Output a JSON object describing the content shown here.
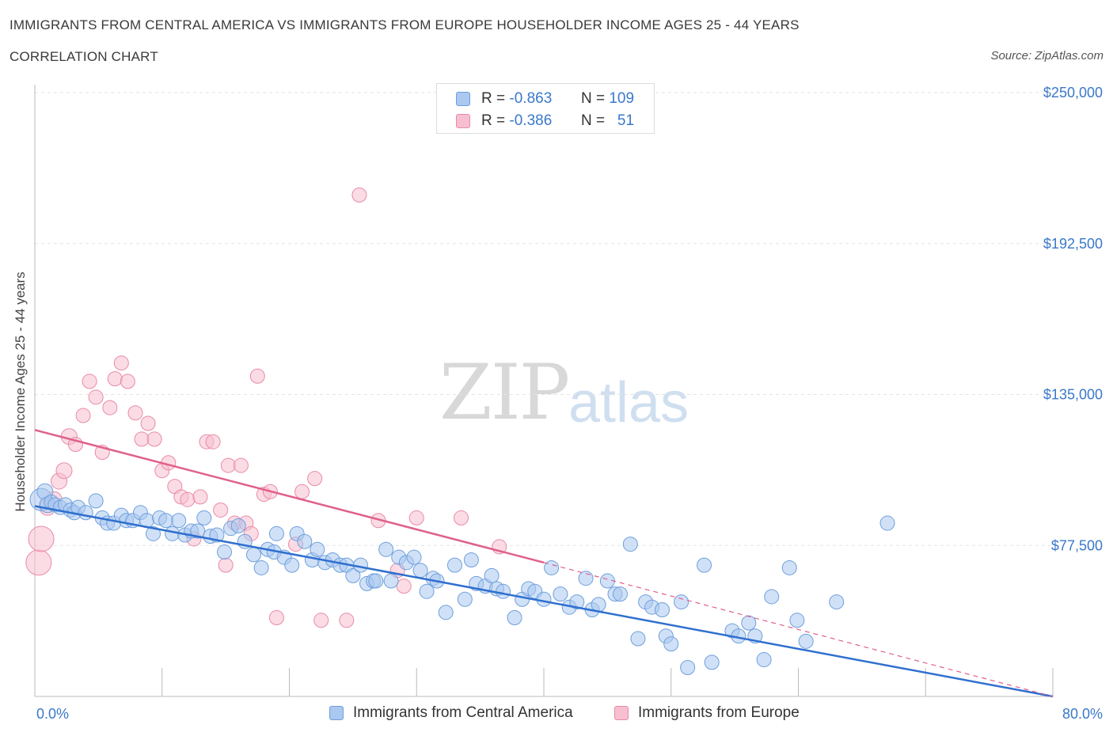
{
  "title": "IMMIGRANTS FROM CENTRAL AMERICA VS IMMIGRANTS FROM EUROPE HOUSEHOLDER INCOME AGES 25 - 44 YEARS",
  "subtitle": "CORRELATION CHART",
  "source": "Source: ZipAtlas.com",
  "watermark": {
    "zip": "ZIP",
    "atlas": "atlas"
  },
  "legend": {
    "rows": [
      {
        "r_label": "R =",
        "r_value": "-0.863",
        "n_label": "N =",
        "n_value": "109",
        "color": "#aac8f0"
      },
      {
        "r_label": "R =",
        "r_value": "-0.386",
        "n_label": "N =",
        "n_value": "51",
        "color": "#f7bfd0"
      }
    ]
  },
  "bottom_legend": {
    "series1": "Immigrants from Central America",
    "series2": "Immigrants from Europe"
  },
  "colors": {
    "blue_fill": "#aac8f0",
    "blue_stroke": "#6f9fdc",
    "blue_line": "#2f6fcf",
    "pink_fill": "#f7bfd0",
    "pink_stroke": "#e98aa8",
    "pink_line": "#e0608a",
    "tick_label": "#3a78c9",
    "grid": "#e3e3e3"
  },
  "chart_data": {
    "type": "scatter",
    "title": "IMMIGRANTS FROM CENTRAL AMERICA VS IMMIGRANTS FROM EUROPE HOUSEHOLDER INCOME AGES 25 - 44 YEARS",
    "xlabel": "",
    "ylabel": "Householder Income Ages 25 - 44 years",
    "xlim": [
      0,
      80
    ],
    "ylim": [
      20000,
      250000
    ],
    "x_tick_labels": [
      "0.0%",
      "80.0%"
    ],
    "y_ticks": [
      77500,
      135000,
      192500,
      250000
    ],
    "y_tick_labels": [
      "$77,500",
      "$135,000",
      "$192,500",
      "$250,000"
    ],
    "grid": "horizontal dashed",
    "legend_position": "top-center",
    "series": [
      {
        "name": "Immigrants from Central America",
        "color": "#aac8f0",
        "trend": {
          "x": [
            0,
            80
          ],
          "y": [
            92500,
            20000
          ]
        },
        "points": [
          [
            0.5,
            95000,
            14
          ],
          [
            0.8,
            98000,
            10
          ],
          [
            1.0,
            93000,
            10
          ],
          [
            1.3,
            94000,
            9
          ],
          [
            1.6,
            93000,
            9
          ],
          [
            2.0,
            92000,
            9
          ],
          [
            2.4,
            93000,
            9
          ],
          [
            2.8,
            91000,
            9
          ],
          [
            3.1,
            90000,
            9
          ],
          [
            3.4,
            92000,
            9
          ],
          [
            4.0,
            90000,
            9
          ],
          [
            4.8,
            94500,
            9
          ],
          [
            5.3,
            88000,
            9
          ],
          [
            5.7,
            86000,
            9
          ],
          [
            6.2,
            86000,
            9
          ],
          [
            6.8,
            89000,
            9
          ],
          [
            7.2,
            87000,
            9
          ],
          [
            7.7,
            87000,
            9
          ],
          [
            8.3,
            90000,
            9
          ],
          [
            8.8,
            87000,
            9
          ],
          [
            9.3,
            82000,
            9
          ],
          [
            9.8,
            88000,
            9
          ],
          [
            10.3,
            87000,
            9
          ],
          [
            10.8,
            82000,
            9
          ],
          [
            11.3,
            87000,
            9
          ],
          [
            11.8,
            81500,
            9
          ],
          [
            12.3,
            83000,
            9
          ],
          [
            12.8,
            83000,
            9
          ],
          [
            13.3,
            88000,
            9
          ],
          [
            13.8,
            81000,
            9
          ],
          [
            14.3,
            81500,
            9
          ],
          [
            14.9,
            75000,
            9
          ],
          [
            15.4,
            84000,
            9
          ],
          [
            16.0,
            85000,
            9
          ],
          [
            16.5,
            79000,
            9
          ],
          [
            17.2,
            74000,
            9
          ],
          [
            17.8,
            69000,
            9
          ],
          [
            18.3,
            76000,
            9
          ],
          [
            18.8,
            75000,
            9
          ],
          [
            19.0,
            82000,
            9
          ],
          [
            19.6,
            73000,
            9
          ],
          [
            20.2,
            70000,
            9
          ],
          [
            20.6,
            82000,
            9
          ],
          [
            21.2,
            79000,
            9
          ],
          [
            21.8,
            72000,
            9
          ],
          [
            22.2,
            76000,
            9
          ],
          [
            22.8,
            71000,
            9
          ],
          [
            23.4,
            72000,
            9
          ],
          [
            24.0,
            70000,
            9
          ],
          [
            24.5,
            70000,
            9
          ],
          [
            25.0,
            66000,
            9
          ],
          [
            25.6,
            70000,
            9
          ],
          [
            26.1,
            63000,
            9
          ],
          [
            26.6,
            64000,
            9
          ],
          [
            26.8,
            64000,
            9
          ],
          [
            27.6,
            76000,
            9
          ],
          [
            28.0,
            64000,
            9
          ],
          [
            28.6,
            73000,
            9
          ],
          [
            29.2,
            71000,
            9
          ],
          [
            29.8,
            73000,
            9
          ],
          [
            30.3,
            68000,
            9
          ],
          [
            30.8,
            60000,
            9
          ],
          [
            31.3,
            65000,
            9
          ],
          [
            31.6,
            64000,
            9
          ],
          [
            32.3,
            52000,
            9
          ],
          [
            33.0,
            70000,
            9
          ],
          [
            33.8,
            57000,
            9
          ],
          [
            34.3,
            72000,
            9
          ],
          [
            34.7,
            63000,
            9
          ],
          [
            35.4,
            62000,
            9
          ],
          [
            35.9,
            66000,
            9
          ],
          [
            36.3,
            61000,
            9
          ],
          [
            36.8,
            60000,
            9
          ],
          [
            37.7,
            50000,
            9
          ],
          [
            38.3,
            57000,
            9
          ],
          [
            38.8,
            61000,
            9
          ],
          [
            39.3,
            60000,
            9
          ],
          [
            40.0,
            57000,
            9
          ],
          [
            40.6,
            69000,
            9
          ],
          [
            41.3,
            59000,
            9
          ],
          [
            42.0,
            54000,
            9
          ],
          [
            42.6,
            56000,
            9
          ],
          [
            43.3,
            65000,
            9
          ],
          [
            43.8,
            53000,
            9
          ],
          [
            44.3,
            55000,
            9
          ],
          [
            45.0,
            64000,
            9
          ],
          [
            45.6,
            59000,
            9
          ],
          [
            46.0,
            59000,
            9
          ],
          [
            46.8,
            78000,
            9
          ],
          [
            47.4,
            42000,
            9
          ],
          [
            48.0,
            56000,
            9
          ],
          [
            48.5,
            54000,
            9
          ],
          [
            49.3,
            53000,
            9
          ],
          [
            49.6,
            43000,
            9
          ],
          [
            50.0,
            40000,
            9
          ],
          [
            50.8,
            56000,
            9
          ],
          [
            51.3,
            31000,
            9
          ],
          [
            52.6,
            70000,
            9
          ],
          [
            53.2,
            33000,
            9
          ],
          [
            54.8,
            45000,
            9
          ],
          [
            55.3,
            43000,
            9
          ],
          [
            56.1,
            48000,
            9
          ],
          [
            56.6,
            43000,
            9
          ],
          [
            57.3,
            34000,
            9
          ],
          [
            57.9,
            58000,
            9
          ],
          [
            59.3,
            69000,
            9
          ],
          [
            59.9,
            49000,
            9
          ],
          [
            60.6,
            41000,
            9
          ],
          [
            63.0,
            56000,
            9
          ],
          [
            67.0,
            86000,
            9
          ]
        ]
      },
      {
        "name": "Immigrants from Europe",
        "color": "#f7bfd0",
        "trend": {
          "x": [
            0,
            40
          ],
          "y": [
            121500,
            71000
          ]
        },
        "trend_dashed": {
          "x": [
            40,
            80
          ],
          "y": [
            71000,
            20000
          ]
        },
        "points": [
          [
            0.3,
            71000,
            16
          ],
          [
            0.5,
            80000,
            16
          ],
          [
            1.0,
            92000,
            10
          ],
          [
            1.5,
            95000,
            10
          ],
          [
            1.9,
            102000,
            10
          ],
          [
            2.3,
            106000,
            10
          ],
          [
            2.7,
            119000,
            10
          ],
          [
            3.2,
            116000,
            9
          ],
          [
            3.8,
            127000,
            9
          ],
          [
            4.3,
            140000,
            9
          ],
          [
            4.8,
            134000,
            9
          ],
          [
            5.3,
            113000,
            9
          ],
          [
            5.9,
            130000,
            9
          ],
          [
            6.3,
            141000,
            9
          ],
          [
            6.8,
            147000,
            9
          ],
          [
            7.3,
            140000,
            9
          ],
          [
            7.9,
            128000,
            9
          ],
          [
            8.4,
            118000,
            9
          ],
          [
            8.9,
            124000,
            9
          ],
          [
            9.4,
            118000,
            9
          ],
          [
            10.0,
            106000,
            9
          ],
          [
            10.5,
            109000,
            9
          ],
          [
            11.0,
            100000,
            9
          ],
          [
            11.5,
            96000,
            9
          ],
          [
            12.0,
            95000,
            9
          ],
          [
            12.5,
            80000,
            9
          ],
          [
            13.0,
            96000,
            9
          ],
          [
            13.5,
            117000,
            9
          ],
          [
            14.0,
            117000,
            9
          ],
          [
            14.6,
            91000,
            9
          ],
          [
            15.0,
            70000,
            9
          ],
          [
            15.2,
            108000,
            9
          ],
          [
            15.7,
            86000,
            9
          ],
          [
            16.2,
            108000,
            9
          ],
          [
            16.6,
            86000,
            9
          ],
          [
            17.0,
            82000,
            9
          ],
          [
            17.5,
            142000,
            9
          ],
          [
            18.0,
            97000,
            9
          ],
          [
            18.5,
            98000,
            9
          ],
          [
            19.0,
            50000,
            9
          ],
          [
            20.5,
            78000,
            9
          ],
          [
            21.0,
            98000,
            9
          ],
          [
            22.0,
            103000,
            9
          ],
          [
            22.5,
            49000,
            9
          ],
          [
            24.5,
            49000,
            9
          ],
          [
            25.5,
            211000,
            9
          ],
          [
            27.0,
            87000,
            9
          ],
          [
            28.5,
            68000,
            9
          ],
          [
            29.0,
            62000,
            9
          ],
          [
            30.0,
            88000,
            9
          ],
          [
            33.5,
            88000,
            9
          ],
          [
            36.5,
            77000,
            9
          ]
        ]
      }
    ]
  }
}
